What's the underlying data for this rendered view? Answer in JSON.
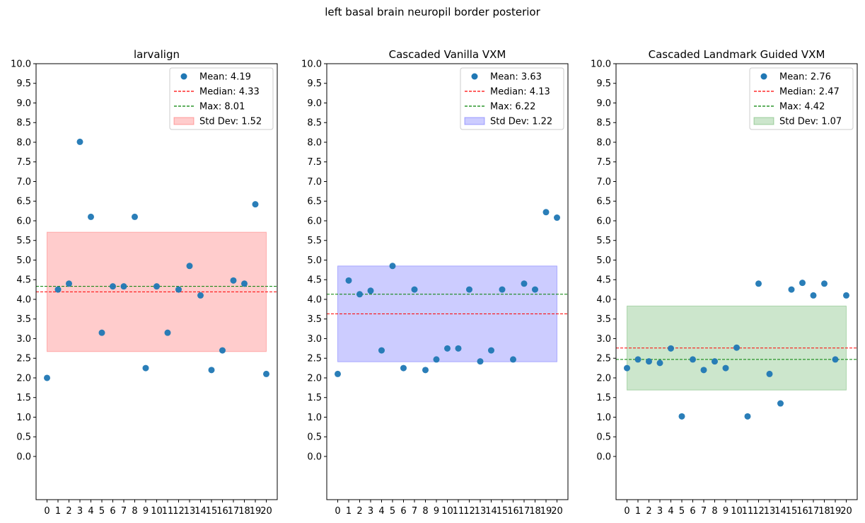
{
  "suptitle": "left basal brain neuropil border posterior",
  "chart_data": [
    {
      "type": "scatter",
      "title": "larvalign",
      "x": [
        0,
        1,
        2,
        3,
        4,
        5,
        6,
        7,
        8,
        9,
        10,
        11,
        12,
        13,
        14,
        15,
        16,
        17,
        18,
        19,
        20
      ],
      "values": [
        2.0,
        4.25,
        4.4,
        8.01,
        6.1,
        3.15,
        4.33,
        4.33,
        6.1,
        2.25,
        4.33,
        3.15,
        4.25,
        4.85,
        4.1,
        2.2,
        2.7,
        4.48,
        4.4,
        6.42,
        2.1
      ],
      "ylim": [
        -1.1,
        10.0
      ],
      "yticks": [
        "0.0",
        "0.5",
        "1.0",
        "1.5",
        "2.0",
        "2.5",
        "3.0",
        "3.5",
        "4.0",
        "4.5",
        "5.0",
        "5.5",
        "6.0",
        "6.5",
        "7.0",
        "7.5",
        "8.0",
        "8.5",
        "9.0",
        "9.5",
        "10.0"
      ],
      "mean": 4.19,
      "median": 4.33,
      "max": 8.01,
      "std": 1.52,
      "band": [
        2.67,
        5.71
      ],
      "band_color": "#ff0000",
      "legend": {
        "position": "top-right",
        "mean_label": "Mean: 4.19",
        "median_label": "Median: 4.33",
        "max_label": "Max: 8.01",
        "std_label": "Std Dev: 1.52"
      }
    },
    {
      "type": "scatter",
      "title": "Cascaded Vanilla VXM",
      "x": [
        0,
        1,
        2,
        3,
        4,
        5,
        6,
        7,
        8,
        9,
        10,
        11,
        12,
        13,
        14,
        15,
        16,
        17,
        18,
        19,
        20
      ],
      "values": [
        2.1,
        4.48,
        4.13,
        4.22,
        2.7,
        4.85,
        2.25,
        4.25,
        2.2,
        2.47,
        2.75,
        2.75,
        4.25,
        2.42,
        2.7,
        4.25,
        2.47,
        4.4,
        4.25,
        6.22,
        6.08
      ],
      "ylim": [
        -1.1,
        10.0
      ],
      "yticks": [
        "0.0",
        "0.5",
        "1.0",
        "1.5",
        "2.0",
        "2.5",
        "3.0",
        "3.5",
        "4.0",
        "4.5",
        "5.0",
        "5.5",
        "6.0",
        "6.5",
        "7.0",
        "7.5",
        "8.0",
        "8.5",
        "9.0",
        "9.5",
        "10.0"
      ],
      "mean": 3.63,
      "median": 4.13,
      "max": 6.22,
      "std": 1.22,
      "band": [
        2.41,
        4.85
      ],
      "band_color": "#0000ff",
      "legend": {
        "position": "top-right",
        "mean_label": "Mean: 3.63",
        "median_label": "Median: 4.13",
        "max_label": "Max: 6.22",
        "std_label": "Std Dev: 1.22"
      }
    },
    {
      "type": "scatter",
      "title": "Cascaded Landmark Guided VXM",
      "x": [
        0,
        1,
        2,
        3,
        4,
        5,
        6,
        7,
        8,
        9,
        10,
        11,
        12,
        13,
        14,
        15,
        16,
        17,
        18,
        19,
        20
      ],
      "values": [
        2.25,
        2.47,
        2.42,
        2.38,
        2.75,
        1.02,
        2.47,
        2.2,
        2.42,
        2.25,
        2.77,
        1.02,
        4.4,
        2.1,
        1.35,
        4.25,
        4.42,
        4.1,
        4.4,
        2.47,
        4.1
      ],
      "ylim": [
        -1.1,
        10.0
      ],
      "yticks": [
        "0.0",
        "0.5",
        "1.0",
        "1.5",
        "2.0",
        "2.5",
        "3.0",
        "3.5",
        "4.0",
        "4.5",
        "5.0",
        "5.5",
        "6.0",
        "6.5",
        "7.0",
        "7.5",
        "8.0",
        "8.5",
        "9.0",
        "9.5",
        "10.0"
      ],
      "mean": 2.76,
      "median": 2.47,
      "max": 4.42,
      "std": 1.07,
      "band": [
        1.69,
        3.83
      ],
      "band_color": "#008000",
      "legend": {
        "position": "top-right",
        "mean_label": "Mean: 2.76",
        "median_label": "Median: 2.47",
        "max_label": "Max: 4.42",
        "std_label": "Std Dev: 1.07"
      }
    }
  ],
  "colors": {
    "points": "#1f77b4",
    "mean_line": "#ff0000",
    "max_line": "#008000"
  }
}
